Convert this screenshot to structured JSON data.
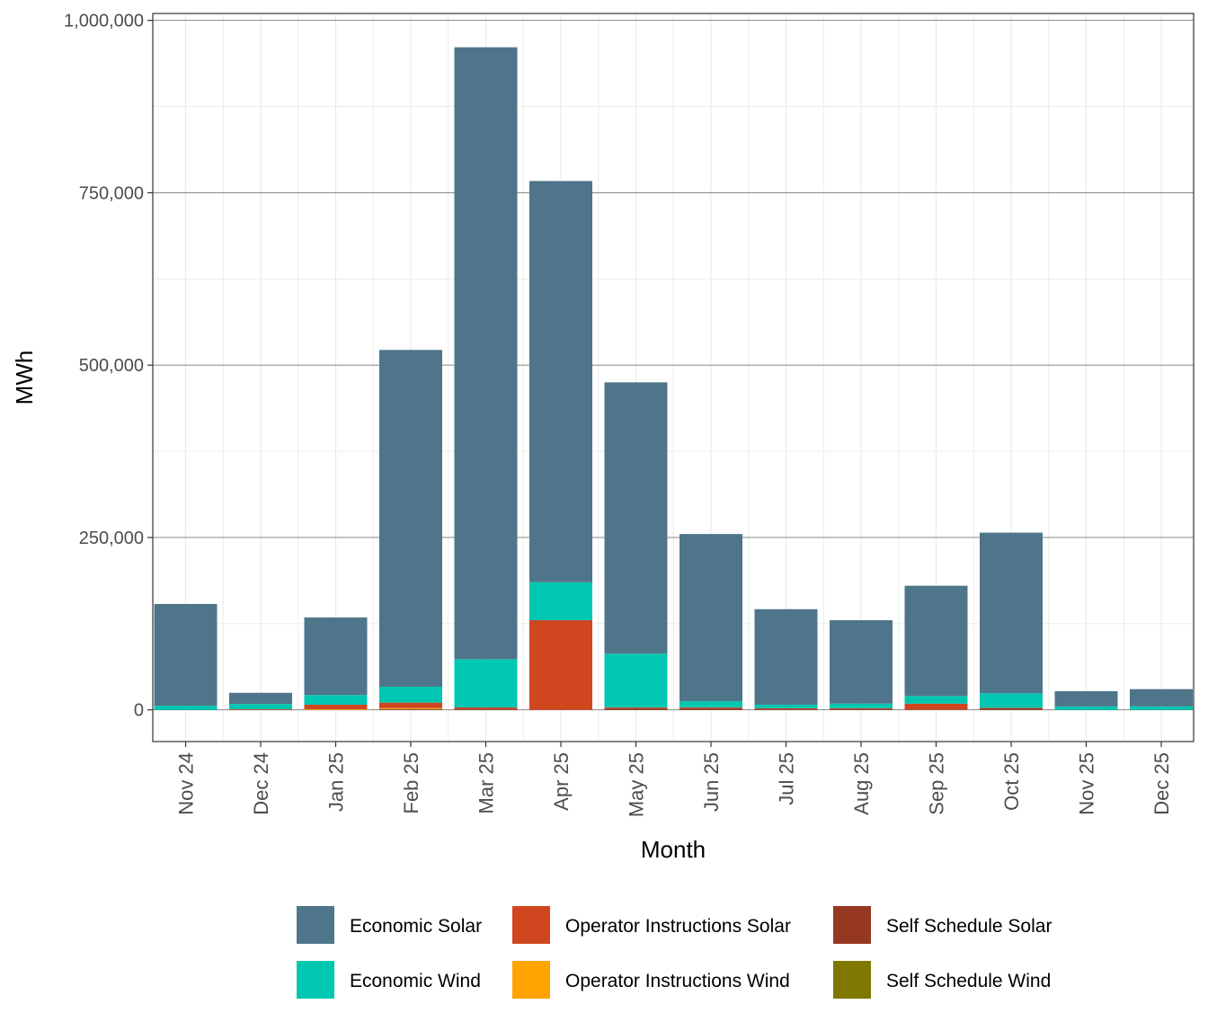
{
  "chart_data": {
    "type": "bar",
    "stacked": true,
    "xlabel": "Month",
    "ylabel": "MWh",
    "ylim": [
      -46000,
      1010000
    ],
    "yticks": [
      0,
      250000,
      500000,
      750000,
      1000000
    ],
    "ytick_labels": [
      "0",
      "250,000",
      "500,000",
      "750,000",
      "1,000,000"
    ],
    "grid": true,
    "legend_position": "bottom",
    "categories": [
      "Nov 24",
      "Dec 24",
      "Jan 25",
      "Feb 25",
      "Mar 25",
      "Apr 25",
      "May 25",
      "Jun 25",
      "Jul 25",
      "Aug 25",
      "Sep 25",
      "Oct 25",
      "Nov 25",
      "Dec 25"
    ],
    "series": [
      {
        "name": "Self Schedule Wind",
        "color": "#7F7800",
        "values": [
          0,
          0,
          0,
          0,
          0,
          0,
          0,
          0,
          0,
          0,
          0,
          0,
          0,
          0
        ]
      },
      {
        "name": "Self Schedule Solar",
        "color": "#963821",
        "values": [
          0,
          0,
          0,
          1000,
          1500,
          0,
          2500,
          2500,
          2000,
          2000,
          0,
          2500,
          0,
          0
        ]
      },
      {
        "name": "Operator Instructions Wind",
        "color": "#FFA300",
        "values": [
          0,
          0,
          1000,
          1500,
          0,
          0,
          0,
          0,
          0,
          0,
          0,
          0,
          0,
          0
        ]
      },
      {
        "name": "Operator Instructions Solar",
        "color": "#D0461F",
        "values": [
          0,
          1000,
          6500,
          8000,
          2000,
          130000,
          1000,
          1000,
          500,
          500,
          9000,
          500,
          0,
          0
        ]
      },
      {
        "name": "Economic Wind",
        "color": "#00C7B1",
        "values": [
          6000,
          7500,
          14000,
          23000,
          70000,
          55000,
          78000,
          9000,
          5000,
          6500,
          11000,
          21000,
          5000,
          5000
        ]
      },
      {
        "name": "Economic Solar",
        "color": "#4E7589",
        "values": [
          147600,
          16200,
          112500,
          488500,
          887500,
          582000,
          393500,
          242500,
          138500,
          121000,
          160000,
          233000,
          22000,
          25000
        ]
      }
    ],
    "legend_order": [
      "Economic Solar",
      "Operator Instructions Solar",
      "Self Schedule Solar",
      "Economic Wind",
      "Operator Instructions Wind",
      "Self Schedule Wind"
    ]
  }
}
